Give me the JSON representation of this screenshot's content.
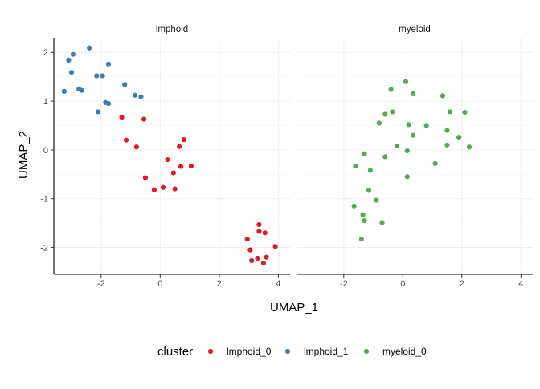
{
  "chart_data": {
    "type": "scatter",
    "xlabel": "UMAP_1",
    "ylabel": "UMAP_2",
    "xlim": [
      -3.6,
      4.4
    ],
    "ylim": [
      -2.55,
      2.3
    ],
    "x_ticks": [
      -2,
      0,
      2,
      4
    ],
    "y_ticks": [
      -2,
      -1,
      0,
      1,
      2
    ],
    "grid": true,
    "legend_position": "bottom",
    "legend_title": "cluster",
    "panels": [
      {
        "label": "lmphoid",
        "series": [
          {
            "name": "lmphoid_0",
            "color": "#e41a1c",
            "points": [
              [
                -1.3,
                0.67
              ],
              [
                -0.55,
                0.63
              ],
              [
                -1.15,
                0.2
              ],
              [
                -0.8,
                0.06
              ],
              [
                0.8,
                0.21
              ],
              [
                0.65,
                0.07
              ],
              [
                0.25,
                -0.2
              ],
              [
                0.45,
                -0.47
              ],
              [
                0.7,
                -0.34
              ],
              [
                1.05,
                -0.33
              ],
              [
                -0.5,
                -0.57
              ],
              [
                -0.2,
                -0.82
              ],
              [
                0.1,
                -0.77
              ],
              [
                0.5,
                -0.8
              ],
              [
                3.35,
                -1.53
              ],
              [
                3.35,
                -1.67
              ],
              [
                3.55,
                -1.7
              ],
              [
                2.95,
                -1.83
              ],
              [
                3.9,
                -1.98
              ],
              [
                3.05,
                -2.05
              ],
              [
                3.6,
                -2.2
              ],
              [
                3.1,
                -2.27
              ],
              [
                3.3,
                -2.22
              ],
              [
                3.5,
                -2.32
              ]
            ]
          },
          {
            "name": "lmphoid_1",
            "color": "#377eb8",
            "points": [
              [
                -2.4,
                2.09
              ],
              [
                -2.95,
                1.96
              ],
              [
                -3.1,
                1.84
              ],
              [
                -3.0,
                1.59
              ],
              [
                -1.75,
                1.76
              ],
              [
                -2.15,
                1.52
              ],
              [
                -1.95,
                1.52
              ],
              [
                -1.2,
                1.34
              ],
              [
                -2.75,
                1.25
              ],
              [
                -2.65,
                1.22
              ],
              [
                -3.25,
                1.2
              ],
              [
                -0.85,
                1.12
              ],
              [
                -0.65,
                1.09
              ],
              [
                -1.85,
                0.97
              ],
              [
                -1.75,
                0.95
              ],
              [
                -2.1,
                0.78
              ]
            ]
          }
        ]
      },
      {
        "label": "myeloid",
        "series": [
          {
            "name": "myeloid_0",
            "color": "#4daf4a",
            "points": [
              [
                0.1,
                1.4
              ],
              [
                -0.4,
                1.24
              ],
              [
                0.35,
                1.15
              ],
              [
                1.35,
                1.11
              ],
              [
                -0.35,
                0.78
              ],
              [
                -0.6,
                0.73
              ],
              [
                1.6,
                0.78
              ],
              [
                2.1,
                0.77
              ],
              [
                -0.8,
                0.55
              ],
              [
                0.8,
                0.5
              ],
              [
                0.2,
                0.52
              ],
              [
                1.5,
                0.4
              ],
              [
                1.9,
                0.26
              ],
              [
                0.35,
                0.3
              ],
              [
                -0.2,
                0.08
              ],
              [
                1.5,
                0.1
              ],
              [
                2.25,
                0.06
              ],
              [
                0.15,
                -0.02
              ],
              [
                -1.3,
                -0.08
              ],
              [
                -0.6,
                -0.14
              ],
              [
                -1.6,
                -0.33
              ],
              [
                -1.1,
                -0.42
              ],
              [
                1.1,
                -0.28
              ],
              [
                0.15,
                -0.55
              ],
              [
                -1.15,
                -0.83
              ],
              [
                -0.9,
                -1.03
              ],
              [
                -1.65,
                -1.15
              ],
              [
                -1.35,
                -1.33
              ],
              [
                -1.3,
                -1.45
              ],
              [
                -0.7,
                -1.49
              ],
              [
                -1.4,
                -1.83
              ]
            ]
          }
        ]
      }
    ]
  }
}
